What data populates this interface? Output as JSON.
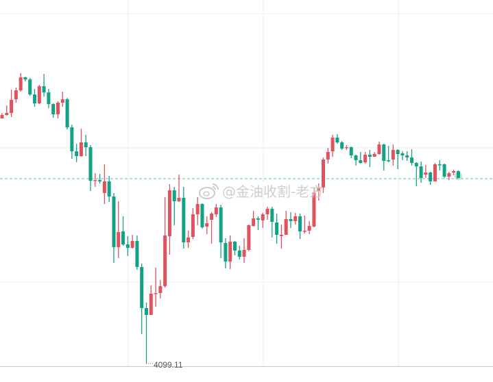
{
  "chart_data": {
    "type": "candlestick",
    "title": "",
    "xlabel": "",
    "ylabel": "",
    "ohlc_order": [
      "open",
      "high",
      "low",
      "close"
    ],
    "ylim": [
      4085.6,
      4364.6
    ],
    "grid": true,
    "colors": {
      "up": "#e0525e",
      "down": "#12a386",
      "price_line": "#8fd9c8",
      "grid": "#eeeeee",
      "axis": "#c8c8cc"
    },
    "current_price": 4234.6,
    "low_annotation": {
      "value": 4099.11,
      "label": "4099.11"
    },
    "candles": [
      [
        4278.1,
        4282.1,
        4278.1,
        4280.6
      ],
      [
        4280.6,
        4287.6,
        4280.1,
        4282.1
      ],
      [
        4282.1,
        4299.1,
        4279.1,
        4291.6
      ],
      [
        4292.1,
        4300.6,
        4289.6,
        4298.6
      ],
      [
        4298.6,
        4311.1,
        4297.6,
        4308.1
      ],
      [
        4308.1,
        4308.6,
        4305.1,
        4306.6
      ],
      [
        4306.6,
        4307.6,
        4294.6,
        4295.6
      ],
      [
        4295.6,
        4299.6,
        4286.6,
        4289.1
      ],
      [
        4289.1,
        4302.6,
        4288.6,
        4301.6
      ],
      [
        4301.6,
        4310.6,
        4294.1,
        4297.1
      ],
      [
        4297.1,
        4299.6,
        4285.6,
        4288.6
      ],
      [
        4288.6,
        4289.1,
        4278.6,
        4281.1
      ],
      [
        4281.1,
        4290.6,
        4278.1,
        4289.6
      ],
      [
        4289.6,
        4297.6,
        4286.6,
        4292.1
      ],
      [
        4292.1,
        4293.1,
        4270.1,
        4271.6
      ],
      [
        4271.6,
        4273.6,
        4248.6,
        4254.1
      ],
      [
        4254.1,
        4259.6,
        4246.1,
        4250.6
      ],
      [
        4250.6,
        4270.6,
        4250.1,
        4260.6
      ],
      [
        4260.6,
        4266.1,
        4250.6,
        4257.1
      ],
      [
        4257.1,
        4258.6,
        4225.1,
        4232.6
      ],
      [
        4232.6,
        4238.1,
        4228.1,
        4233.1
      ],
      [
        4233.1,
        4237.6,
        4230.6,
        4232.1
      ],
      [
        4223.6,
        4244.6,
        4215.6,
        4232.1
      ],
      [
        4232.1,
        4236.1,
        4217.1,
        4221.1
      ],
      [
        4221.1,
        4223.6,
        4172.6,
        4184.1
      ],
      [
        4184.1,
        4217.6,
        4176.1,
        4195.1
      ],
      [
        4195.6,
        4206.6,
        4185.1,
        4186.1
      ],
      [
        4186.1,
        4192.1,
        4177.6,
        4183.6
      ],
      [
        4183.6,
        4193.1,
        4183.1,
        4188.6
      ],
      [
        4188.6,
        4192.6,
        4167.6,
        4169.6
      ],
      [
        4169.6,
        4172.1,
        4120.6,
        4139.6
      ],
      [
        4139.6,
        4143.6,
        4099.11,
        4134.6
      ],
      [
        4134.6,
        4156.1,
        4134.6,
        4150.1
      ],
      [
        4150.1,
        4169.1,
        4140.6,
        4150.6
      ],
      [
        4150.6,
        4160.1,
        4146.6,
        4155.6
      ],
      [
        4155.6,
        4220.6,
        4154.6,
        4192.6
      ],
      [
        4192.1,
        4230.1,
        4178.6,
        4225.6
      ],
      [
        4225.6,
        4228.1,
        4200.1,
        4217.6
      ],
      [
        4217.6,
        4237.1,
        4217.1,
        4220.1
      ],
      [
        4220.1,
        4228.1,
        4183.1,
        4187.6
      ],
      [
        4187.6,
        4196.1,
        4183.6,
        4191.1
      ],
      [
        4191.6,
        4212.6,
        4190.1,
        4208.1
      ],
      [
        4208.1,
        4220.6,
        4200.1,
        4215.6
      ],
      [
        4215.6,
        4216.1,
        4197.6,
        4198.6
      ],
      [
        4199.1,
        4206.6,
        4193.6,
        4201.6
      ],
      [
        4204.1,
        4209.6,
        4186.6,
        4208.6
      ],
      [
        4208.1,
        4215.6,
        4206.1,
        4213.1
      ],
      [
        4213.1,
        4215.1,
        4176.1,
        4187.6
      ],
      [
        4187.1,
        4190.6,
        4168.6,
        4173.6
      ],
      [
        4173.6,
        4192.6,
        4168.1,
        4188.1
      ],
      [
        4188.1,
        4188.6,
        4178.1,
        4181.6
      ],
      [
        4181.6,
        4185.1,
        4175.1,
        4177.1
      ],
      [
        4177.1,
        4190.6,
        4172.6,
        4182.1
      ],
      [
        4182.1,
        4200.6,
        4181.1,
        4200.1
      ],
      [
        4199.6,
        4210.6,
        4199.1,
        4205.1
      ],
      [
        4205.1,
        4206.6,
        4196.6,
        4204.1
      ],
      [
        4203.6,
        4209.1,
        4198.1,
        4208.1
      ],
      [
        4208.1,
        4213.6,
        4204.1,
        4212.1
      ],
      [
        4212.1,
        4213.6,
        4191.1,
        4202.6
      ],
      [
        4202.1,
        4208.6,
        4186.6,
        4193.1
      ],
      [
        4192.1,
        4200.6,
        4183.1,
        4193.1
      ],
      [
        4193.1,
        4210.6,
        4193.1,
        4204.6
      ],
      [
        4204.6,
        4209.6,
        4198.1,
        4203.1
      ],
      [
        4203.1,
        4209.1,
        4200.6,
        4206.6
      ],
      [
        4206.6,
        4208.6,
        4190.1,
        4195.6
      ],
      [
        4195.6,
        4207.1,
        4194.1,
        4196.1
      ],
      [
        4196.1,
        4203.1,
        4193.6,
        4199.6
      ],
      [
        4199.1,
        4227.6,
        4198.6,
        4224.1
      ],
      [
        4225.1,
        4230.6,
        4218.1,
        4227.6
      ],
      [
        4227.6,
        4249.6,
        4223.6,
        4248.1
      ],
      [
        4248.1,
        4256.6,
        4245.1,
        4253.6
      ],
      [
        4254.1,
        4266.1,
        4250.1,
        4264.1
      ],
      [
        4264.1,
        4266.6,
        4259.6,
        4260.6
      ],
      [
        4260.6,
        4261.6,
        4255.1,
        4256.1
      ],
      [
        4256.6,
        4258.6,
        4255.1,
        4257.1
      ],
      [
        4257.1,
        4257.6,
        4249.1,
        4251.1
      ],
      [
        4251.1,
        4251.6,
        4243.6,
        4247.6
      ],
      [
        4247.6,
        4253.6,
        4245.1,
        4245.6
      ],
      [
        4246.1,
        4253.6,
        4245.1,
        4251.6
      ],
      [
        4251.6,
        4255.1,
        4242.6,
        4250.1
      ],
      [
        4250.1,
        4253.6,
        4250.1,
        4252.1
      ],
      [
        4252.1,
        4261.1,
        4251.6,
        4259.1
      ],
      [
        4259.1,
        4259.6,
        4240.1,
        4247.1
      ],
      [
        4247.6,
        4258.1,
        4246.1,
        4247.1
      ],
      [
        4248.1,
        4259.1,
        4243.6,
        4255.1
      ],
      [
        4255.1,
        4255.6,
        4241.1,
        4252.1
      ],
      [
        4252.6,
        4254.1,
        4247.6,
        4251.1
      ],
      [
        4251.1,
        4254.1,
        4247.1,
        4249.6
      ],
      [
        4249.6,
        4255.6,
        4243.6,
        4245.6
      ],
      [
        4245.6,
        4246.1,
        4228.6,
        4243.1
      ],
      [
        4243.1,
        4246.6,
        4231.1,
        4234.6
      ],
      [
        4237.1,
        4244.1,
        4234.6,
        4238.6
      ],
      [
        4238.6,
        4239.1,
        4229.6,
        4232.1
      ],
      [
        4232.1,
        4245.6,
        4232.1,
        4244.6
      ],
      [
        4244.6,
        4247.6,
        4240.1,
        4244.1
      ],
      [
        4244.6,
        4245.1,
        4234.6,
        4235.6
      ],
      [
        4235.6,
        4239.1,
        4233.1,
        4238.1
      ],
      [
        4238.6,
        4240.6,
        4236.6,
        4239.6
      ],
      [
        4239.6,
        4240.1,
        4234.6,
        4234.6
      ]
    ]
  },
  "watermark": {
    "text": "@金油收割-老方",
    "icon": "weibo-icon"
  }
}
